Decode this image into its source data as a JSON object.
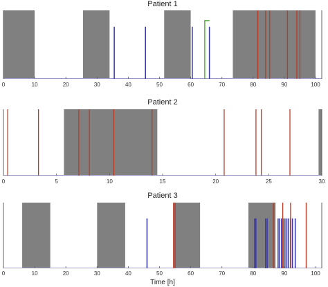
{
  "chart_data": [
    {
      "type": "event-timeline",
      "title": "Patient 1",
      "xlim": [
        0,
        102
      ],
      "xticks": [
        0,
        10,
        20,
        30,
        40,
        50,
        60,
        70,
        80,
        90,
        100
      ],
      "grey_periods": [
        [
          -1,
          10
        ],
        [
          25.5,
          34
        ],
        [
          51.5,
          60
        ],
        [
          73.5,
          100
        ]
      ],
      "red_events": [
        81.5,
        84,
        85.3,
        91,
        94,
        95
      ],
      "blue_events": [
        35.5,
        45.5,
        60.5,
        66
      ],
      "green_step": {
        "x_start": 64.5,
        "x_end": 66,
        "level": 0.85
      },
      "xlabel": ""
    },
    {
      "type": "event-timeline",
      "title": "Patient 2",
      "xlim": [
        0,
        30
      ],
      "xticks": [
        0,
        5,
        10,
        15,
        20,
        25,
        30
      ],
      "grey_periods": [
        [
          5.7,
          14.5
        ],
        [
          29.7,
          31
        ]
      ],
      "red_events": [
        0.4,
        3.3,
        7.1,
        8.1,
        10.4,
        14,
        20.8,
        23.8,
        24.3,
        27
      ],
      "blue_events": [],
      "green_step": null,
      "xlabel": ""
    },
    {
      "type": "event-timeline",
      "title": "Patient 3",
      "xlim": [
        0,
        102
      ],
      "xticks": [
        0,
        10,
        20,
        30,
        40,
        50,
        60,
        70,
        80,
        90,
        100
      ],
      "grey_periods": [
        [
          6,
          15
        ],
        [
          30,
          39
        ],
        [
          54.5,
          63
        ],
        [
          78.5,
          87
        ]
      ],
      "red_events": [
        54.5,
        55,
        86.5,
        87,
        89.5,
        92,
        97
      ],
      "blue_events": [
        46,
        80.5,
        80.9,
        84,
        84.5,
        88,
        88.5,
        89.1,
        89.6,
        90.2,
        90.8,
        91.4,
        92,
        92.6,
        93.5
      ],
      "green_step": null,
      "xlabel": "Time [h]"
    }
  ],
  "colors": {
    "grey_period": "#808080",
    "red_event": "#b83b26",
    "blue_event": "#3b3ba8",
    "green_step": "#4caa2a",
    "axis": "#606060",
    "baseline": "#9a9ac8"
  }
}
